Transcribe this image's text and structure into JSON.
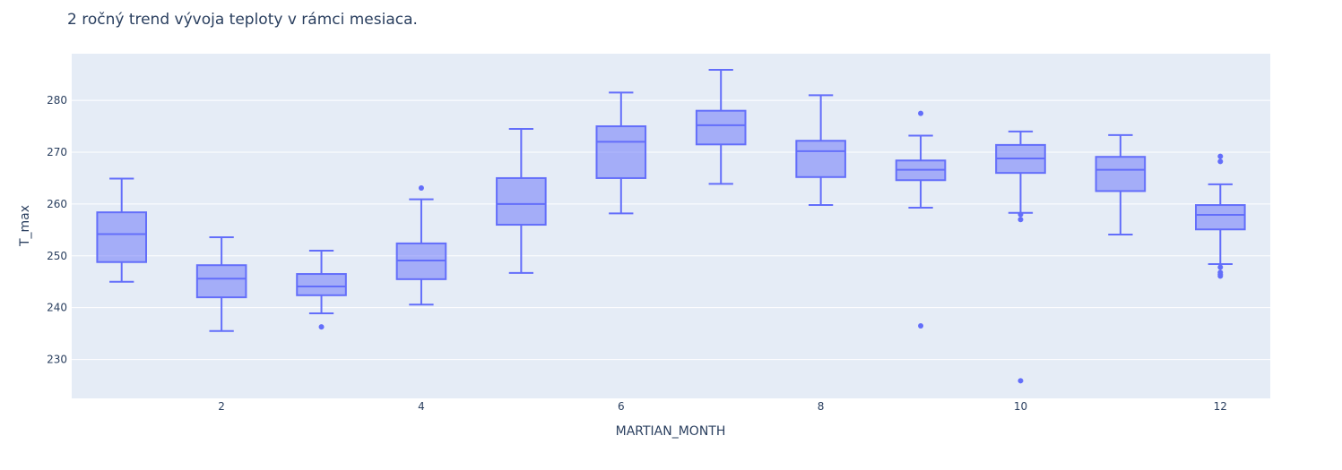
{
  "chart_data": {
    "type": "box",
    "title": "2 ročný trend vývoja teploty v rámci mesiaca.",
    "xlabel": "MARTIAN_MONTH",
    "ylabel": "T_max",
    "x_ticks": [
      2,
      4,
      6,
      8,
      10,
      12
    ],
    "y_ticks": [
      230,
      240,
      250,
      260,
      270,
      280
    ],
    "xlim": [
      0.5,
      12.5
    ],
    "ylim": [
      222.5,
      289
    ],
    "grid": true,
    "colors": {
      "box_line": "#636efa",
      "box_fill": "rgba(99,110,250,0.5)",
      "plot_bg": "#e5ecf6",
      "grid": "#ffffff",
      "text": "#2a3f5f"
    },
    "boxes": [
      {
        "x": 1,
        "lower_fence": 245.0,
        "q1": 248.8,
        "median": 254.2,
        "q3": 258.4,
        "upper_fence": 264.9,
        "outliers": []
      },
      {
        "x": 2,
        "lower_fence": 235.5,
        "q1": 242.0,
        "median": 245.6,
        "q3": 248.2,
        "upper_fence": 253.6,
        "outliers": []
      },
      {
        "x": 3,
        "lower_fence": 238.9,
        "q1": 242.4,
        "median": 244.1,
        "q3": 246.5,
        "upper_fence": 251.0,
        "outliers": [
          236.3
        ]
      },
      {
        "x": 4,
        "lower_fence": 240.6,
        "q1": 245.5,
        "median": 249.1,
        "q3": 252.4,
        "upper_fence": 260.9,
        "outliers": [
          263.1
        ]
      },
      {
        "x": 5,
        "lower_fence": 246.7,
        "q1": 256.0,
        "median": 260.0,
        "q3": 265.0,
        "upper_fence": 274.5,
        "outliers": []
      },
      {
        "x": 6,
        "lower_fence": 258.2,
        "q1": 265.0,
        "median": 272.0,
        "q3": 275.0,
        "upper_fence": 281.5,
        "outliers": []
      },
      {
        "x": 7,
        "lower_fence": 263.9,
        "q1": 271.5,
        "median": 275.2,
        "q3": 278.0,
        "upper_fence": 285.9,
        "outliers": []
      },
      {
        "x": 8,
        "lower_fence": 259.8,
        "q1": 265.2,
        "median": 270.2,
        "q3": 272.2,
        "upper_fence": 281.0,
        "outliers": []
      },
      {
        "x": 9,
        "lower_fence": 259.3,
        "q1": 264.6,
        "median": 266.6,
        "q3": 268.4,
        "upper_fence": 273.2,
        "outliers": [
          277.5,
          236.5
        ]
      },
      {
        "x": 10,
        "lower_fence": 258.3,
        "q1": 266.0,
        "median": 268.8,
        "q3": 271.4,
        "upper_fence": 274.0,
        "outliers": [
          258.0,
          257.0,
          225.9
        ]
      },
      {
        "x": 11,
        "lower_fence": 254.1,
        "q1": 262.5,
        "median": 266.6,
        "q3": 269.1,
        "upper_fence": 273.3,
        "outliers": []
      },
      {
        "x": 12,
        "lower_fence": 248.4,
        "q1": 255.1,
        "median": 257.9,
        "q3": 259.8,
        "upper_fence": 263.8,
        "outliers": [
          269.2,
          268.2,
          247.8,
          246.8,
          246.4,
          246.1
        ]
      }
    ]
  }
}
